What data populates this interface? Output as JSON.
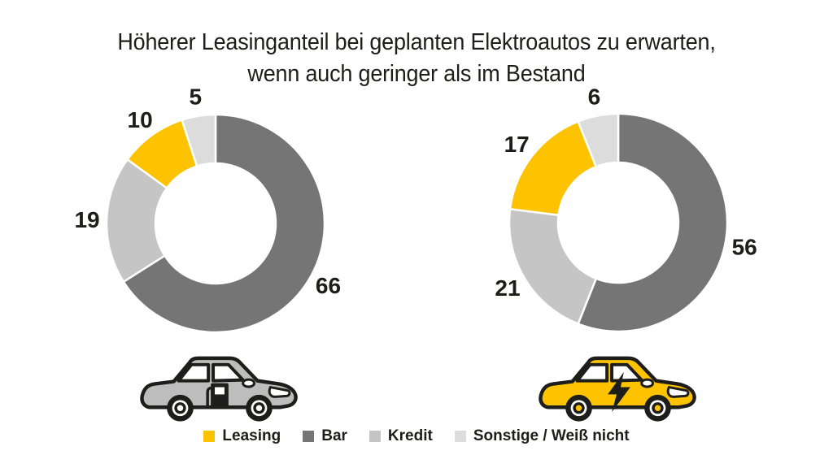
{
  "title": {
    "line1": "Höherer Leasinganteil bei geplanten Elektroautos zu erwarten,",
    "line2": "wenn auch geringer als im Bestand"
  },
  "colors": {
    "leasing_yellow": "#fdc300",
    "bar_dark_gray": "#757575",
    "kredit_gray": "#c5c5c5",
    "sonstige_light_gray": "#dcdcdc",
    "text": "#1d1d1b",
    "car_body_gray": "#bdbdbd",
    "white": "#ffffff"
  },
  "chart_data": [
    {
      "type": "donut",
      "group": "bestand",
      "car_icon": "combustion-car-icon",
      "segments_clockwise_from_top": [
        {
          "label": "Bar",
          "value": 66,
          "color": "#757575"
        },
        {
          "label": "Kredit",
          "value": 19,
          "color": "#c5c5c5"
        },
        {
          "label": "Leasing",
          "value": 10,
          "color": "#fdc300"
        },
        {
          "label": "Sonstige / Weiß nicht",
          "value": 5,
          "color": "#dcdcdc"
        }
      ],
      "total": 100
    },
    {
      "type": "donut",
      "group": "geplante-elektroautos",
      "car_icon": "electric-car-icon",
      "segments_clockwise_from_top": [
        {
          "label": "Bar",
          "value": 56,
          "color": "#757575"
        },
        {
          "label": "Kredit",
          "value": 21,
          "color": "#c5c5c5"
        },
        {
          "label": "Leasing",
          "value": 17,
          "color": "#fdc300"
        },
        {
          "label": "Sonstige / Weiß nicht",
          "value": 6,
          "color": "#dcdcdc"
        }
      ],
      "total": 100
    }
  ],
  "legend": [
    {
      "label": "Leasing",
      "color": "#fdc300"
    },
    {
      "label": "Bar",
      "color": "#757575"
    },
    {
      "label": "Kredit",
      "color": "#c5c5c5"
    },
    {
      "label": "Sonstige / Weiß nicht",
      "color": "#dcdcdc"
    }
  ]
}
